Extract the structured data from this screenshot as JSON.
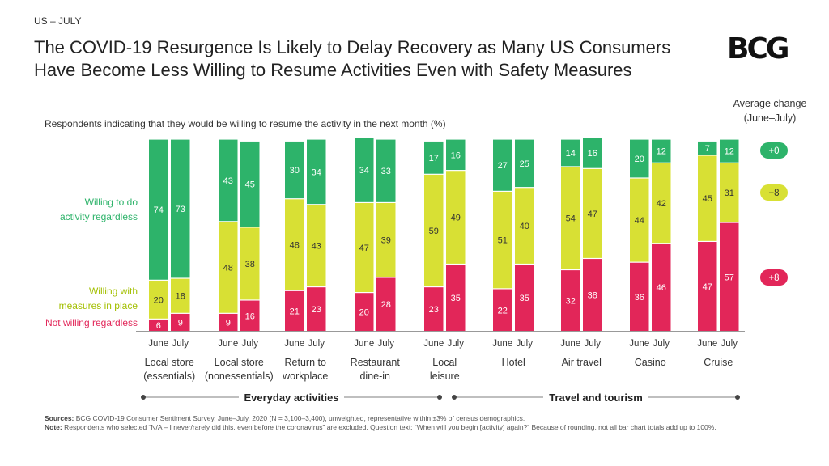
{
  "header": {
    "region_label": "US – JULY",
    "title": "The COVID-19 Resurgence Is Likely to Delay Recovery as Many US Consumers Have Become Less Willing to Resume Activities Even with Safety Measures",
    "logo_text": "BCG",
    "subtitle": "Respondents indicating that they would be willing to resume the activity in the next month (%)"
  },
  "average_change": {
    "title": "Average change (June–July)",
    "badges": [
      {
        "label": "+0",
        "color": "#2db36a"
      },
      {
        "label": "−8",
        "color": "#d8e034"
      },
      {
        "label": "+8",
        "color": "#e22659"
      }
    ]
  },
  "segment_labels": [
    {
      "label_lines": [
        "Willing to do",
        "activity regardless"
      ],
      "color": "#2db36a"
    },
    {
      "label_lines": [
        "Willing with",
        "measures in place"
      ],
      "color": "#a3bf00"
    },
    {
      "label_lines": [
        "Not willing regardless"
      ],
      "color": "#e22659"
    }
  ],
  "groups": [
    {
      "label": "Everyday activities"
    },
    {
      "label": "Travel and tourism"
    }
  ],
  "chart_data": {
    "type": "bar",
    "stacked": true,
    "periods": [
      "June",
      "July"
    ],
    "categories": [
      {
        "label_lines": [
          "Local store",
          "(essentials)"
        ],
        "group": 0
      },
      {
        "label_lines": [
          "Local store",
          "(nonessentials)"
        ],
        "group": 0
      },
      {
        "label_lines": [
          "Return to",
          "workplace"
        ],
        "group": 0
      },
      {
        "label_lines": [
          "Restaurant",
          "dine-in"
        ],
        "group": 0
      },
      {
        "label_lines": [
          "Local",
          "leisure"
        ],
        "group": 0
      },
      {
        "label_lines": [
          "Hotel"
        ],
        "group": 1
      },
      {
        "label_lines": [
          "Air travel"
        ],
        "group": 1
      },
      {
        "label_lines": [
          "Casino"
        ],
        "group": 1
      },
      {
        "label_lines": [
          "Cruise"
        ],
        "group": 1
      }
    ],
    "series": [
      {
        "name": "Not willing regardless",
        "color": "#e22659",
        "june": [
          6,
          9,
          21,
          20,
          23,
          22,
          32,
          36,
          47
        ],
        "july": [
          9,
          16,
          23,
          28,
          35,
          35,
          38,
          46,
          57
        ]
      },
      {
        "name": "Willing with measures in place",
        "color": "#d8e034",
        "june": [
          20,
          48,
          48,
          47,
          59,
          51,
          54,
          44,
          45
        ],
        "july": [
          18,
          38,
          43,
          39,
          49,
          40,
          47,
          42,
          31
        ]
      },
      {
        "name": "Willing to do activity regardless",
        "color": "#2db36a",
        "june": [
          74,
          43,
          30,
          34,
          17,
          27,
          14,
          20,
          7
        ],
        "july": [
          73,
          45,
          34,
          33,
          16,
          25,
          16,
          12,
          12
        ]
      }
    ],
    "ylim": [
      0,
      100
    ]
  },
  "notes": {
    "sources_label": "Sources:",
    "sources_text": "BCG COVID-19 Consumer Sentiment Survey, June–July, 2020 (N = 3,100–3,400), unweighted, representative within ±3% of census demographics.",
    "note_label": "Note:",
    "note_text": "Respondents who selected “N/A – I never/rarely did this, even before the coronavirus” are excluded. Question text: “When will you begin [activity] again?” Because of rounding, not all bar chart totals add up to 100%."
  }
}
